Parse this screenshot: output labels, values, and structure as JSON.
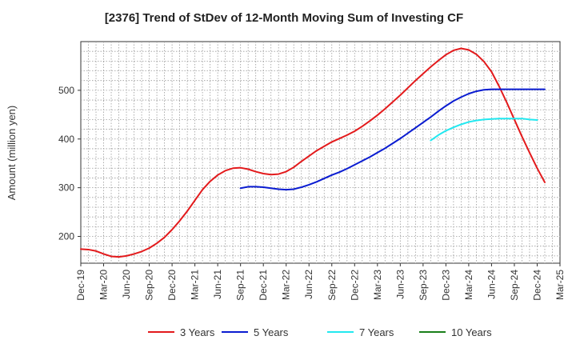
{
  "chart_data": {
    "type": "line",
    "title": "[2376]  Trend of StDev of 12-Month Moving Sum of Investing CF",
    "xlabel": "",
    "ylabel": "Amount (million yen)",
    "ylim": [
      145,
      600
    ],
    "yticks": [
      200,
      300,
      400,
      500
    ],
    "grid": true,
    "legend_position": "bottom",
    "x_ticks": [
      "Dec-19",
      "Mar-20",
      "Jun-20",
      "Sep-20",
      "Dec-20",
      "Mar-21",
      "Jun-21",
      "Sep-21",
      "Dec-21",
      "Mar-22",
      "Jun-22",
      "Sep-22",
      "Dec-22",
      "Mar-23",
      "Jun-23",
      "Sep-23",
      "Dec-23",
      "Mar-24",
      "Jun-24",
      "Sep-24",
      "Dec-24",
      "Mar-25"
    ],
    "series": [
      {
        "name": "3 Years",
        "color": "#e31a1c",
        "start_index": 0,
        "values": [
          174,
          173,
          170,
          164,
          159,
          158,
          160,
          164,
          169,
          176,
          186,
          198,
          214,
          232,
          252,
          274,
          296,
          313,
          326,
          335,
          340,
          341,
          338,
          333,
          329,
          327,
          328,
          333,
          342,
          354,
          365,
          376,
          385,
          394,
          401,
          408,
          416,
          426,
          437,
          449,
          462,
          476,
          490,
          505,
          520,
          534,
          548,
          561,
          573,
          582,
          586,
          583,
          574,
          559,
          538,
          508,
          475,
          440,
          405,
          372,
          340,
          311
        ]
      },
      {
        "name": "5 Years",
        "color": "#0a1cd1",
        "start_index": 21,
        "values": [
          299,
          302,
          302,
          301,
          299,
          297,
          296,
          297,
          301,
          306,
          312,
          319,
          326,
          332,
          339,
          347,
          355,
          363,
          372,
          381,
          391,
          401,
          412,
          423,
          434,
          445,
          457,
          468,
          478,
          486,
          493,
          498,
          501,
          502,
          502,
          502,
          502,
          502,
          502,
          502,
          502
        ]
      },
      {
        "name": "7 Years",
        "color": "#22e8f0",
        "start_index": 46,
        "values": [
          397,
          408,
          417,
          424,
          430,
          435,
          438,
          440,
          441,
          442,
          442,
          442,
          442,
          440,
          439
        ]
      },
      {
        "name": "10 Years",
        "color": "#1a7f1a",
        "start_index": 0,
        "values": []
      }
    ]
  }
}
